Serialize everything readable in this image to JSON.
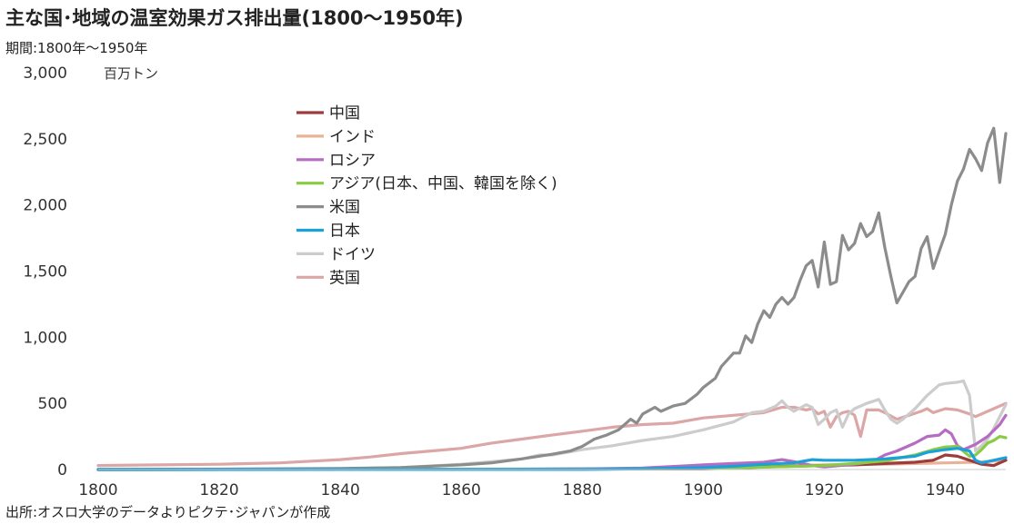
{
  "title": "主な国･地域の温室効果ガス排出量(1800〜1950年)",
  "subtitle": "期間:1800年〜1950年",
  "source": "出所:オスロ大学のデータよりピクテ･ジャパンが作成",
  "chart_data": {
    "type": "line",
    "unit": "百万トン",
    "ylim": [
      0,
      3000
    ],
    "yticks": [
      0,
      500,
      1000,
      1500,
      2000,
      2500,
      3000
    ],
    "ytick_labels": [
      "0",
      "500",
      "1,000",
      "1,500",
      "2,000",
      "2,500",
      "3,000"
    ],
    "xlim": [
      1800,
      1950
    ],
    "xticks": [
      1800,
      1820,
      1840,
      1860,
      1880,
      1900,
      1920,
      1940
    ],
    "legend_position": "upper-left",
    "series": [
      {
        "name": "中国",
        "color": "#9E3B3B",
        "points": [
          [
            1800,
            0
          ],
          [
            1900,
            5
          ],
          [
            1905,
            10
          ],
          [
            1910,
            20
          ],
          [
            1915,
            25
          ],
          [
            1920,
            30
          ],
          [
            1925,
            35
          ],
          [
            1930,
            45
          ],
          [
            1935,
            55
          ],
          [
            1938,
            70
          ],
          [
            1940,
            110
          ],
          [
            1942,
            100
          ],
          [
            1944,
            70
          ],
          [
            1946,
            40
          ],
          [
            1948,
            30
          ],
          [
            1950,
            70
          ]
        ]
      },
      {
        "name": "インド",
        "color": "#E7B399",
        "points": [
          [
            1800,
            0
          ],
          [
            1870,
            2
          ],
          [
            1890,
            8
          ],
          [
            1900,
            15
          ],
          [
            1910,
            25
          ],
          [
            1920,
            35
          ],
          [
            1930,
            40
          ],
          [
            1940,
            50
          ],
          [
            1945,
            55
          ],
          [
            1950,
            70
          ]
        ]
      },
      {
        "name": "ロシア",
        "color": "#B66CC2",
        "points": [
          [
            1800,
            0
          ],
          [
            1870,
            3
          ],
          [
            1880,
            5
          ],
          [
            1890,
            12
          ],
          [
            1900,
            35
          ],
          [
            1905,
            45
          ],
          [
            1910,
            55
          ],
          [
            1913,
            75
          ],
          [
            1915,
            60
          ],
          [
            1918,
            30
          ],
          [
            1920,
            20
          ],
          [
            1925,
            40
          ],
          [
            1928,
            60
          ],
          [
            1930,
            110
          ],
          [
            1932,
            140
          ],
          [
            1935,
            200
          ],
          [
            1937,
            250
          ],
          [
            1939,
            260
          ],
          [
            1940,
            300
          ],
          [
            1941,
            270
          ],
          [
            1942,
            180
          ],
          [
            1943,
            150
          ],
          [
            1945,
            190
          ],
          [
            1947,
            250
          ],
          [
            1949,
            340
          ],
          [
            1950,
            410
          ]
        ]
      },
      {
        "name": "アジア(日本、中国、韓国を除く)",
        "color": "#8ACB45",
        "points": [
          [
            1800,
            0
          ],
          [
            1880,
            2
          ],
          [
            1900,
            8
          ],
          [
            1910,
            18
          ],
          [
            1920,
            30
          ],
          [
            1925,
            45
          ],
          [
            1930,
            65
          ],
          [
            1935,
            110
          ],
          [
            1938,
            150
          ],
          [
            1940,
            170
          ],
          [
            1942,
            175
          ],
          [
            1944,
            100
          ],
          [
            1945,
            110
          ],
          [
            1946,
            150
          ],
          [
            1947,
            200
          ],
          [
            1948,
            220
          ],
          [
            1949,
            250
          ],
          [
            1950,
            240
          ]
        ]
      },
      {
        "name": "米国",
        "color": "#8C8C8C",
        "points": [
          [
            1800,
            1
          ],
          [
            1820,
            3
          ],
          [
            1840,
            8
          ],
          [
            1850,
            15
          ],
          [
            1860,
            35
          ],
          [
            1865,
            50
          ],
          [
            1870,
            80
          ],
          [
            1875,
            115
          ],
          [
            1878,
            140
          ],
          [
            1880,
            175
          ],
          [
            1882,
            230
          ],
          [
            1884,
            260
          ],
          [
            1886,
            300
          ],
          [
            1888,
            380
          ],
          [
            1889,
            350
          ],
          [
            1890,
            420
          ],
          [
            1892,
            470
          ],
          [
            1893,
            440
          ],
          [
            1895,
            480
          ],
          [
            1897,
            500
          ],
          [
            1899,
            570
          ],
          [
            1900,
            620
          ],
          [
            1902,
            690
          ],
          [
            1903,
            780
          ],
          [
            1905,
            880
          ],
          [
            1906,
            880
          ],
          [
            1907,
            1010
          ],
          [
            1908,
            960
          ],
          [
            1909,
            1100
          ],
          [
            1910,
            1200
          ],
          [
            1911,
            1150
          ],
          [
            1912,
            1250
          ],
          [
            1913,
            1300
          ],
          [
            1914,
            1250
          ],
          [
            1915,
            1300
          ],
          [
            1916,
            1430
          ],
          [
            1917,
            1540
          ],
          [
            1918,
            1580
          ],
          [
            1919,
            1380
          ],
          [
            1920,
            1720
          ],
          [
            1921,
            1400
          ],
          [
            1922,
            1420
          ],
          [
            1923,
            1770
          ],
          [
            1924,
            1660
          ],
          [
            1925,
            1710
          ],
          [
            1926,
            1860
          ],
          [
            1927,
            1760
          ],
          [
            1928,
            1800
          ],
          [
            1929,
            1940
          ],
          [
            1930,
            1680
          ],
          [
            1931,
            1460
          ],
          [
            1932,
            1260
          ],
          [
            1933,
            1340
          ],
          [
            1934,
            1420
          ],
          [
            1935,
            1460
          ],
          [
            1936,
            1670
          ],
          [
            1937,
            1760
          ],
          [
            1938,
            1520
          ],
          [
            1939,
            1650
          ],
          [
            1940,
            1780
          ],
          [
            1941,
            2000
          ],
          [
            1942,
            2180
          ],
          [
            1943,
            2270
          ],
          [
            1944,
            2420
          ],
          [
            1945,
            2350
          ],
          [
            1946,
            2260
          ],
          [
            1947,
            2470
          ],
          [
            1948,
            2580
          ],
          [
            1949,
            2170
          ],
          [
            1950,
            2540
          ]
        ]
      },
      {
        "name": "日本",
        "color": "#1BA1DA",
        "points": [
          [
            1800,
            0
          ],
          [
            1880,
            1
          ],
          [
            1890,
            5
          ],
          [
            1900,
            15
          ],
          [
            1905,
            25
          ],
          [
            1910,
            40
          ],
          [
            1915,
            50
          ],
          [
            1918,
            75
          ],
          [
            1920,
            70
          ],
          [
            1925,
            70
          ],
          [
            1930,
            80
          ],
          [
            1935,
            100
          ],
          [
            1937,
            130
          ],
          [
            1940,
            150
          ],
          [
            1942,
            160
          ],
          [
            1944,
            140
          ],
          [
            1945,
            70
          ],
          [
            1946,
            50
          ],
          [
            1948,
            70
          ],
          [
            1950,
            90
          ]
        ]
      },
      {
        "name": "ドイツ",
        "color": "#CCCCCC",
        "points": [
          [
            1800,
            0
          ],
          [
            1820,
            2
          ],
          [
            1840,
            5
          ],
          [
            1850,
            15
          ],
          [
            1860,
            40
          ],
          [
            1865,
            60
          ],
          [
            1870,
            80
          ],
          [
            1873,
            110
          ],
          [
            1875,
            110
          ],
          [
            1880,
            150
          ],
          [
            1885,
            180
          ],
          [
            1890,
            220
          ],
          [
            1895,
            250
          ],
          [
            1900,
            300
          ],
          [
            1905,
            360
          ],
          [
            1908,
            430
          ],
          [
            1910,
            440
          ],
          [
            1912,
            480
          ],
          [
            1913,
            520
          ],
          [
            1914,
            470
          ],
          [
            1915,
            440
          ],
          [
            1917,
            490
          ],
          [
            1918,
            470
          ],
          [
            1919,
            340
          ],
          [
            1920,
            380
          ],
          [
            1921,
            430
          ],
          [
            1922,
            450
          ],
          [
            1923,
            320
          ],
          [
            1924,
            420
          ],
          [
            1925,
            460
          ],
          [
            1927,
            500
          ],
          [
            1929,
            530
          ],
          [
            1930,
            450
          ],
          [
            1931,
            380
          ],
          [
            1932,
            350
          ],
          [
            1933,
            380
          ],
          [
            1935,
            460
          ],
          [
            1937,
            560
          ],
          [
            1939,
            640
          ],
          [
            1940,
            650
          ],
          [
            1942,
            660
          ],
          [
            1943,
            670
          ],
          [
            1944,
            560
          ],
          [
            1945,
            140
          ],
          [
            1946,
            180
          ],
          [
            1947,
            230
          ],
          [
            1948,
            310
          ],
          [
            1950,
            490
          ]
        ]
      },
      {
        "name": "英国",
        "color": "#DDA6A6",
        "points": [
          [
            1800,
            30
          ],
          [
            1810,
            35
          ],
          [
            1820,
            40
          ],
          [
            1830,
            50
          ],
          [
            1840,
            75
          ],
          [
            1845,
            95
          ],
          [
            1850,
            120
          ],
          [
            1855,
            140
          ],
          [
            1860,
            160
          ],
          [
            1865,
            200
          ],
          [
            1870,
            230
          ],
          [
            1875,
            260
          ],
          [
            1880,
            290
          ],
          [
            1885,
            320
          ],
          [
            1890,
            340
          ],
          [
            1895,
            350
          ],
          [
            1900,
            390
          ],
          [
            1905,
            410
          ],
          [
            1910,
            430
          ],
          [
            1913,
            470
          ],
          [
            1915,
            470
          ],
          [
            1917,
            450
          ],
          [
            1918,
            460
          ],
          [
            1919,
            420
          ],
          [
            1920,
            440
          ],
          [
            1921,
            320
          ],
          [
            1922,
            400
          ],
          [
            1923,
            430
          ],
          [
            1924,
            440
          ],
          [
            1925,
            410
          ],
          [
            1926,
            250
          ],
          [
            1927,
            450
          ],
          [
            1929,
            450
          ],
          [
            1930,
            430
          ],
          [
            1932,
            380
          ],
          [
            1934,
            410
          ],
          [
            1936,
            440
          ],
          [
            1937,
            460
          ],
          [
            1938,
            430
          ],
          [
            1940,
            460
          ],
          [
            1942,
            450
          ],
          [
            1944,
            420
          ],
          [
            1945,
            400
          ],
          [
            1946,
            420
          ],
          [
            1948,
            460
          ],
          [
            1950,
            500
          ]
        ]
      }
    ]
  }
}
